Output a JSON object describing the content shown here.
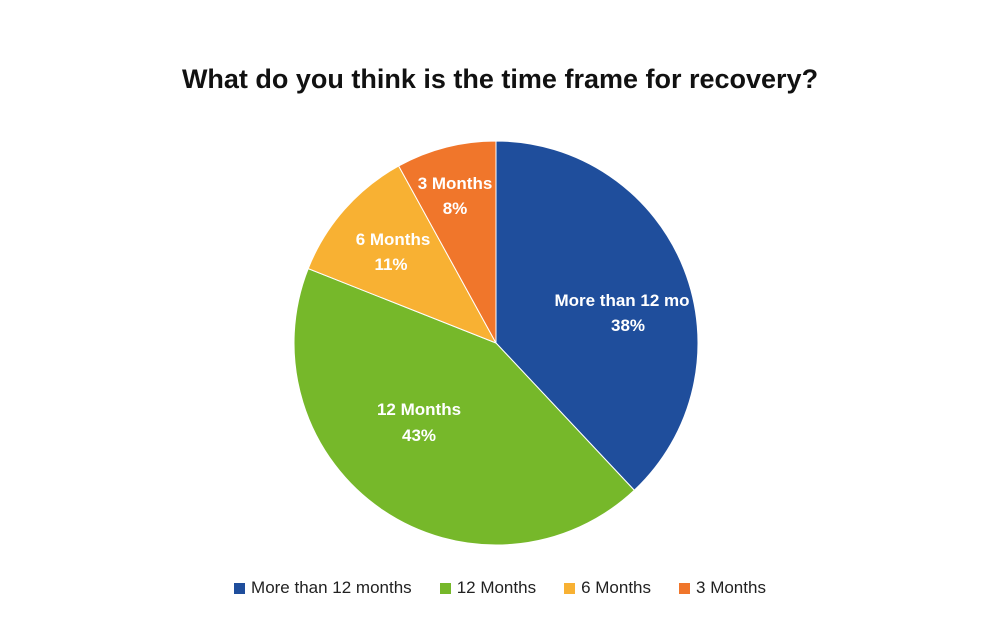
{
  "chart_data": {
    "type": "pie",
    "title": "What do you think is the time frame for recovery?",
    "start_angle_deg": 0,
    "direction": "clockwise",
    "legend_position": "bottom",
    "slices": [
      {
        "label": "More than 12 months",
        "display_label": "More than 12 mo",
        "value": 38,
        "value_label": "38%",
        "color": "#1f4e9c"
      },
      {
        "label": "12 Months",
        "display_label": "12 Months",
        "value": 43,
        "value_label": "43%",
        "color": "#76b82a"
      },
      {
        "label": "6 Months",
        "display_label": "6 Months",
        "value": 11,
        "value_label": "11%",
        "color": "#f8b133"
      },
      {
        "label": "3 Months",
        "display_label": "3 Months",
        "value": 8,
        "value_label": "8%",
        "color": "#f0762b"
      }
    ]
  }
}
